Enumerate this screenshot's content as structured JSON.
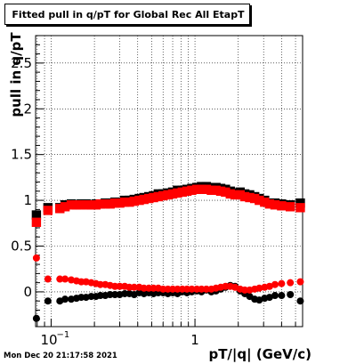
{
  "title": "Fitted pull in q/pT for Global Rec All EtapT",
  "footer_timestamp": "Mon Dec 20 21:17:58 2021",
  "chart_data": {
    "type": "scatter",
    "title": "Fitted pull in q/pT for Global Rec All EtapT",
    "xlabel": "pT/|q| (GeV/c)",
    "ylabel": "pull in q/pT",
    "x_scale": "log",
    "xlim": [
      0.078,
      5.6
    ],
    "ylim": [
      -0.38,
      2.8
    ],
    "x_tick_labels": [
      {
        "value": 0.1,
        "base": "10",
        "exp": "−1"
      },
      {
        "value": 1,
        "label": "1"
      }
    ],
    "y_ticks": [
      0,
      0.5,
      1,
      1.5,
      2,
      2.5
    ],
    "y_tick_labels": [
      "0",
      "0.5",
      "1",
      "1.5",
      "2",
      "2.5"
    ],
    "grid": true,
    "x": [
      0.079,
      0.095,
      0.115,
      0.125,
      0.138,
      0.15,
      0.162,
      0.175,
      0.19,
      0.205,
      0.22,
      0.238,
      0.257,
      0.278,
      0.3,
      0.325,
      0.35,
      0.378,
      0.41,
      0.442,
      0.478,
      0.515,
      0.556,
      0.6,
      0.648,
      0.7,
      0.756,
      0.816,
      0.88,
      0.95,
      1.03,
      1.11,
      1.2,
      1.3,
      1.4,
      1.51,
      1.63,
      1.76,
      1.9,
      2.06,
      2.22,
      2.4,
      2.6,
      2.8,
      3.05,
      3.3,
      3.6,
      4.0,
      4.6,
      5.4
    ],
    "series": [
      {
        "color": "#000000",
        "marker": "square",
        "values": [
          0.84,
          0.92,
          0.92,
          0.95,
          0.96,
          0.95,
          0.96,
          0.96,
          0.95,
          0.96,
          0.96,
          0.97,
          0.97,
          0.98,
          0.98,
          1.0,
          1.0,
          1.01,
          1.02,
          1.03,
          1.04,
          1.05,
          1.07,
          1.07,
          1.08,
          1.09,
          1.11,
          1.11,
          1.12,
          1.13,
          1.14,
          1.15,
          1.15,
          1.14,
          1.14,
          1.13,
          1.12,
          1.1,
          1.08,
          1.09,
          1.07,
          1.06,
          1.04,
          1.02,
          1.0,
          0.97,
          0.97,
          0.96,
          0.95,
          0.97
        ]
      },
      {
        "color": "#ff0000",
        "marker": "square",
        "values": [
          0.76,
          0.89,
          0.91,
          0.93,
          0.95,
          0.95,
          0.95,
          0.95,
          0.95,
          0.95,
          0.96,
          0.96,
          0.96,
          0.97,
          0.97,
          0.98,
          0.98,
          0.99,
          1.0,
          1.01,
          1.02,
          1.03,
          1.04,
          1.05,
          1.06,
          1.07,
          1.08,
          1.09,
          1.1,
          1.11,
          1.12,
          1.12,
          1.12,
          1.11,
          1.11,
          1.1,
          1.09,
          1.07,
          1.06,
          1.06,
          1.04,
          1.03,
          1.02,
          1.0,
          0.98,
          0.96,
          0.95,
          0.94,
          0.93,
          0.92
        ]
      },
      {
        "color": "#000000",
        "marker": "circle",
        "values": [
          -0.29,
          -0.1,
          -0.1,
          -0.08,
          -0.08,
          -0.07,
          -0.06,
          -0.06,
          -0.05,
          -0.05,
          -0.04,
          -0.04,
          -0.03,
          -0.03,
          -0.03,
          -0.02,
          -0.02,
          -0.03,
          -0.01,
          -0.02,
          -0.01,
          -0.02,
          -0.01,
          -0.01,
          -0.02,
          -0.01,
          -0.02,
          0.0,
          -0.01,
          0.0,
          0.01,
          0.0,
          0.02,
          0.0,
          0.01,
          0.03,
          0.05,
          0.07,
          0.06,
          0.01,
          -0.02,
          -0.05,
          -0.08,
          -0.09,
          -0.07,
          -0.06,
          -0.04,
          -0.04,
          -0.03,
          -0.1
        ]
      },
      {
        "color": "#ff0000",
        "marker": "circle",
        "values": [
          0.37,
          0.14,
          0.14,
          0.14,
          0.13,
          0.12,
          0.11,
          0.11,
          0.1,
          0.09,
          0.08,
          0.08,
          0.07,
          0.06,
          0.06,
          0.06,
          0.05,
          0.05,
          0.05,
          0.04,
          0.04,
          0.04,
          0.04,
          0.03,
          0.03,
          0.03,
          0.03,
          0.03,
          0.03,
          0.03,
          0.03,
          0.03,
          0.03,
          0.03,
          0.04,
          0.05,
          0.06,
          0.06,
          0.05,
          0.03,
          0.02,
          0.02,
          0.03,
          0.04,
          0.05,
          0.06,
          0.08,
          0.09,
          0.1,
          0.11
        ]
      }
    ]
  }
}
